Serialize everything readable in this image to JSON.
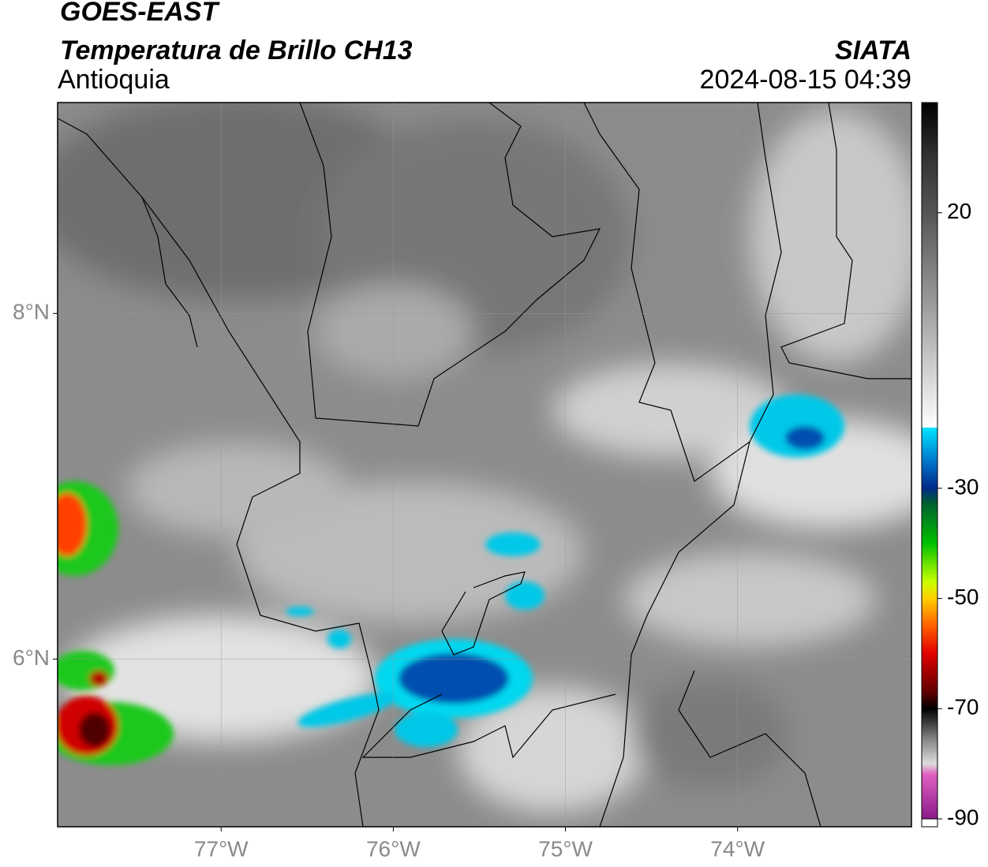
{
  "header": {
    "title": "GOES-EAST",
    "subtitle": "Temperatura de Brillo CH13",
    "region": "Antioquia",
    "source": "SIATA",
    "datetime": "2024-08-15 04:39"
  },
  "map": {
    "xlim": [
      -77.95,
      -72.99
    ],
    "ylim": [
      5.03,
      9.22
    ],
    "xticks": [
      {
        "value": -77,
        "label": "77°W"
      },
      {
        "value": -76,
        "label": "76°W"
      },
      {
        "value": -75,
        "label": "75°W"
      },
      {
        "value": -74,
        "label": "74°W"
      }
    ],
    "yticks": [
      {
        "value": 6,
        "label": "6°N"
      },
      {
        "value": 8,
        "label": "8°N"
      }
    ]
  },
  "colorbar": {
    "lim": [
      -90,
      40
    ],
    "ticks": [
      20,
      -30,
      -50,
      -70,
      -90
    ]
  }
}
